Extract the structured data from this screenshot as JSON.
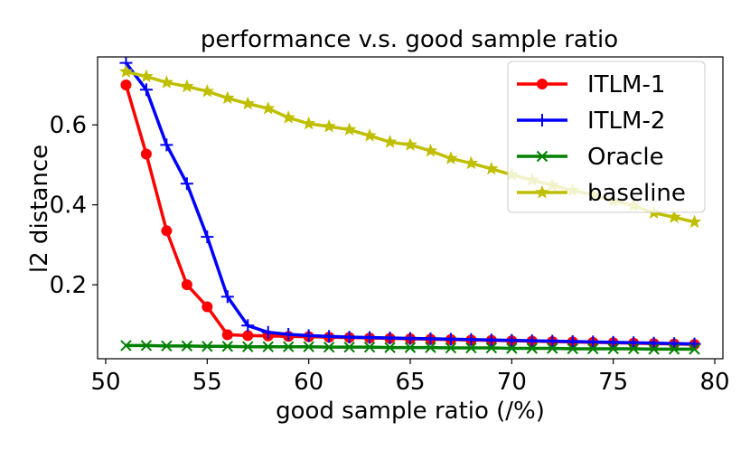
{
  "chart_data": {
    "type": "line",
    "title": "performance v.s. good sample ratio",
    "xlabel": "good sample ratio (/%)",
    "ylabel": "l2 distance",
    "xlim": [
      49.6,
      80.4
    ],
    "ylim": [
      0.015,
      0.77
    ],
    "xticks": [
      50,
      55,
      60,
      65,
      70,
      75,
      80
    ],
    "yticks": [
      0.2,
      0.4,
      0.6
    ],
    "ytick_labels": [
      "0.2",
      "0.4",
      "0.6"
    ],
    "legend_position": "top-right",
    "x": [
      51,
      52,
      53,
      54,
      55,
      56,
      57,
      58,
      59,
      60,
      61,
      62,
      63,
      64,
      65,
      66,
      67,
      68,
      69,
      70,
      71,
      72,
      73,
      74,
      75,
      76,
      77,
      78,
      79
    ],
    "series": [
      {
        "name": "ITLM-1",
        "color": "#ff0000",
        "marker": "circle",
        "values": [
          0.7,
          0.527,
          0.335,
          0.2,
          0.145,
          0.075,
          0.073,
          0.072,
          0.071,
          0.07,
          0.069,
          0.068,
          0.067,
          0.066,
          0.065,
          0.064,
          0.063,
          0.062,
          0.061,
          0.06,
          0.059,
          0.058,
          0.057,
          0.056,
          0.055,
          0.054,
          0.053,
          0.052,
          0.051
        ]
      },
      {
        "name": "ITLM-2",
        "color": "#0000ff",
        "marker": "plus",
        "values": [
          0.755,
          0.688,
          0.55,
          0.453,
          0.32,
          0.17,
          0.098,
          0.081,
          0.076,
          0.073,
          0.071,
          0.069,
          0.068,
          0.067,
          0.066,
          0.065,
          0.064,
          0.063,
          0.062,
          0.061,
          0.06,
          0.059,
          0.058,
          0.057,
          0.056,
          0.055,
          0.054,
          0.053,
          0.052
        ]
      },
      {
        "name": "Oracle",
        "color": "#008000",
        "marker": "x",
        "values": [
          0.048,
          0.048,
          0.047,
          0.047,
          0.046,
          0.046,
          0.045,
          0.045,
          0.045,
          0.045,
          0.044,
          0.044,
          0.044,
          0.043,
          0.043,
          0.043,
          0.042,
          0.042,
          0.042,
          0.041,
          0.041,
          0.041,
          0.04,
          0.04,
          0.04,
          0.04,
          0.039,
          0.039,
          0.039
        ]
      },
      {
        "name": "baseline",
        "color": "#bfbf00",
        "marker": "star",
        "values": [
          0.733,
          0.721,
          0.706,
          0.696,
          0.684,
          0.667,
          0.653,
          0.641,
          0.618,
          0.603,
          0.596,
          0.588,
          0.573,
          0.557,
          0.55,
          0.535,
          0.516,
          0.504,
          0.49,
          0.475,
          0.462,
          0.449,
          0.436,
          0.425,
          0.41,
          0.398,
          0.38,
          0.369,
          0.357
        ]
      }
    ]
  }
}
